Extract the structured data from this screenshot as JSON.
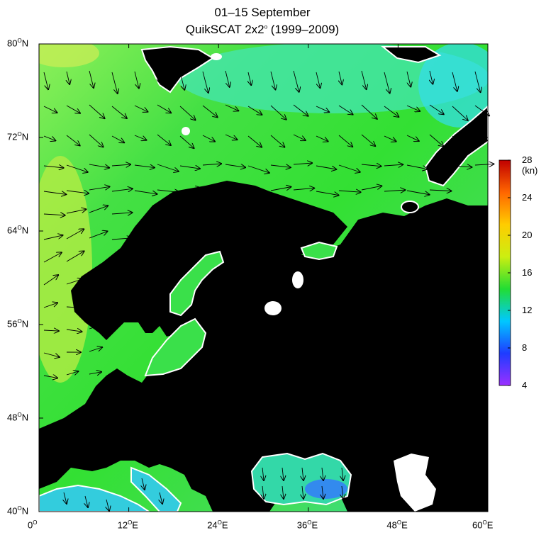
{
  "title": "01–15 September",
  "subtitle_main": "QuikSCAT 2x2",
  "subtitle_sup": "o",
  "subtitle_years": " (1999–2009)",
  "lat_ticks": [
    {
      "deg": "80",
      "hemi": "N",
      "lat": 80
    },
    {
      "deg": "72",
      "hemi": "N",
      "lat": 72
    },
    {
      "deg": "64",
      "hemi": "N",
      "lat": 64
    },
    {
      "deg": "56",
      "hemi": "N",
      "lat": 56
    },
    {
      "deg": "48",
      "hemi": "N",
      "lat": 48
    },
    {
      "deg": "40",
      "hemi": "N",
      "lat": 40
    }
  ],
  "lon_ticks": [
    {
      "deg": "0",
      "hemi": "",
      "lon": 0
    },
    {
      "deg": "12",
      "hemi": "E",
      "lon": 12
    },
    {
      "deg": "24",
      "hemi": "E",
      "lon": 24
    },
    {
      "deg": "36",
      "hemi": "E",
      "lon": 36
    },
    {
      "deg": "48",
      "hemi": "E",
      "lon": 48
    },
    {
      "deg": "60",
      "hemi": "E",
      "lon": 60
    }
  ],
  "colorbar": {
    "unit": "(kn)",
    "ticks": [
      "28",
      "24",
      "20",
      "16",
      "12",
      "8",
      "4"
    ],
    "range": [
      4,
      28
    ],
    "colors": [
      "#9b30ff",
      "#1e3cff",
      "#00c8ff",
      "#22dd33",
      "#ccee11",
      "#ffcc00",
      "#ff6600",
      "#c00000"
    ]
  },
  "map": {
    "lon_range": [
      0,
      60
    ],
    "lat_range": [
      40,
      80
    ],
    "ocean_color": "#33e033",
    "land_color": "#000000",
    "ice_color": "#ffffff"
  }
}
